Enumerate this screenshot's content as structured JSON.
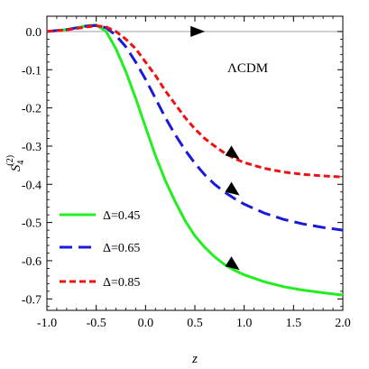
{
  "chart_data": {
    "type": "line",
    "xlabel": "z",
    "ylabel_main": "S",
    "ylabel_sub": "4",
    "ylabel_sup": "(2)",
    "xlim": [
      -1.0,
      2.0
    ],
    "ylim": [
      -0.73,
      0.04
    ],
    "xticks": [
      -1.0,
      -0.5,
      0.0,
      0.5,
      1.0,
      1.5,
      2.0
    ],
    "xtick_labels": [
      "-1.0",
      "-0.5",
      "0.0",
      "0.5",
      "1.0",
      "1.5",
      "2.0"
    ],
    "yticks": [
      0.0,
      -0.1,
      -0.2,
      -0.3,
      -0.4,
      -0.5,
      -0.6,
      -0.7
    ],
    "ytick_labels": [
      "0.0",
      "-0.1",
      "-0.2",
      "-0.3",
      "-0.4",
      "-0.5",
      "-0.6",
      "-0.7"
    ],
    "reference_line": {
      "label": "ΛCDM",
      "y": 0.0,
      "color": "#aaaaaa"
    },
    "legend_position": "bottom-left",
    "series": [
      {
        "name": "Δ=0.45",
        "color": "#22ee22",
        "dash": "solid",
        "x": [
          -1.0,
          -0.8,
          -0.6,
          -0.5,
          -0.4,
          -0.3,
          -0.2,
          -0.1,
          0.0,
          0.1,
          0.2,
          0.3,
          0.4,
          0.5,
          0.6,
          0.7,
          0.8,
          0.9,
          1.0,
          1.2,
          1.4,
          1.6,
          1.8,
          2.0
        ],
        "y": [
          0.0,
          0.005,
          0.015,
          0.017,
          0.0,
          -0.045,
          -0.105,
          -0.175,
          -0.25,
          -0.325,
          -0.39,
          -0.445,
          -0.495,
          -0.535,
          -0.565,
          -0.59,
          -0.61,
          -0.625,
          -0.637,
          -0.655,
          -0.668,
          -0.677,
          -0.684,
          -0.69
        ]
      },
      {
        "name": "Δ=0.65",
        "color": "#1a1ad8",
        "dash": "long",
        "x": [
          -1.0,
          -0.8,
          -0.6,
          -0.5,
          -0.4,
          -0.3,
          -0.2,
          -0.1,
          0.0,
          0.1,
          0.2,
          0.3,
          0.4,
          0.5,
          0.6,
          0.7,
          0.8,
          0.9,
          1.0,
          1.2,
          1.4,
          1.6,
          1.8,
          2.0
        ],
        "y": [
          0.0,
          0.005,
          0.014,
          0.016,
          0.01,
          -0.01,
          -0.04,
          -0.08,
          -0.125,
          -0.175,
          -0.225,
          -0.27,
          -0.31,
          -0.345,
          -0.375,
          -0.4,
          -0.42,
          -0.437,
          -0.452,
          -0.475,
          -0.492,
          -0.504,
          -0.513,
          -0.52
        ]
      },
      {
        "name": "Δ=0.85",
        "color": "#ee1111",
        "dash": "short",
        "x": [
          -1.0,
          -0.8,
          -0.6,
          -0.5,
          -0.4,
          -0.3,
          -0.2,
          -0.1,
          0.0,
          0.1,
          0.2,
          0.3,
          0.4,
          0.5,
          0.6,
          0.7,
          0.8,
          0.9,
          1.0,
          1.2,
          1.4,
          1.6,
          1.8,
          2.0
        ],
        "y": [
          0.0,
          0.004,
          0.012,
          0.015,
          0.012,
          0.0,
          -0.02,
          -0.045,
          -0.08,
          -0.115,
          -0.155,
          -0.19,
          -0.225,
          -0.255,
          -0.28,
          -0.3,
          -0.318,
          -0.332,
          -0.343,
          -0.358,
          -0.368,
          -0.374,
          -0.378,
          -0.381
        ]
      }
    ],
    "arrows": [
      {
        "x": 0.52,
        "y": 0.0
      },
      {
        "x": 0.88,
        "y": -0.32
      },
      {
        "x": 0.88,
        "y": -0.415
      },
      {
        "x": 0.88,
        "y": -0.61
      }
    ]
  }
}
